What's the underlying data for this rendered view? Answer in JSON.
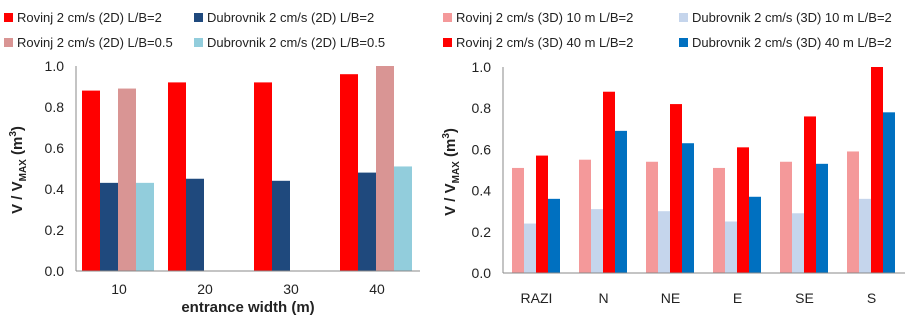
{
  "chart_data": [
    {
      "type": "bar",
      "xlabel": "entrance width  (m)",
      "ylabel": "V / VMAX (m3)",
      "ylabel_parts": {
        "main": "V / V",
        "sub": "MAX",
        "unit_open": " (m",
        "sup": "3",
        "unit_close": ")"
      },
      "ylim": [
        0,
        1.0
      ],
      "yticks": [
        "0.0",
        "0.2",
        "0.4",
        "0.6",
        "0.8",
        "1.0"
      ],
      "categories": [
        "10",
        "20",
        "30",
        "40"
      ],
      "legend_position": "top",
      "grid": false,
      "series": [
        {
          "name": "Rovinj 2 cm/s (2D) L/B=2",
          "color": "#ff0000",
          "values": [
            0.88,
            0.92,
            0.92,
            0.96
          ]
        },
        {
          "name": "Dubrovnik 2 cm/s (2D) L/B=2",
          "color": "#1f497d",
          "values": [
            0.43,
            0.45,
            0.44,
            0.48
          ]
        },
        {
          "name": "Rovinj 2 cm/s (2D) L/B=0.5",
          "color": "#d99594",
          "values": [
            0.89,
            null,
            null,
            1.0
          ]
        },
        {
          "name": "Dubrovnik 2 cm/s (2D) L/B=0.5",
          "color": "#92cddc",
          "values": [
            0.43,
            null,
            null,
            0.51
          ]
        }
      ]
    },
    {
      "type": "bar",
      "xlabel": "",
      "ylabel": "V / VMAX (m3)",
      "ylabel_parts": {
        "main": "V / V",
        "sub": "MAX",
        "unit_open": " (m",
        "sup": "3",
        "unit_close": ")"
      },
      "ylim": [
        0,
        1.0
      ],
      "yticks": [
        "0.0",
        "0.2",
        "0.4",
        "0.6",
        "0.8",
        "1.0"
      ],
      "categories": [
        "RAZI",
        "N",
        "NE",
        "E",
        "SE",
        "S"
      ],
      "legend_position": "top",
      "grid": false,
      "series": [
        {
          "name": "Rovinj 2 cm/s (3D)  10 m L/B=2",
          "color": "#f4999a",
          "values": [
            0.51,
            0.55,
            0.54,
            0.51,
            0.54,
            0.59
          ]
        },
        {
          "name": "Dubrovnik 2 cm/s (3D) 10 m  L/B=2",
          "color": "#c5d5ec",
          "values": [
            0.24,
            0.31,
            0.3,
            0.25,
            0.29,
            0.36
          ]
        },
        {
          "name": "Rovinj 2 cm/s (3D)  40 m L/B=2",
          "color": "#ff0000",
          "values": [
            0.57,
            0.88,
            0.82,
            0.61,
            0.76,
            1.0
          ]
        },
        {
          "name": "Dubrovnik 2 cm/s (3D)  40 m L/B=2",
          "color": "#0070c0",
          "values": [
            0.36,
            0.69,
            0.63,
            0.37,
            0.53,
            0.78
          ]
        }
      ]
    }
  ]
}
